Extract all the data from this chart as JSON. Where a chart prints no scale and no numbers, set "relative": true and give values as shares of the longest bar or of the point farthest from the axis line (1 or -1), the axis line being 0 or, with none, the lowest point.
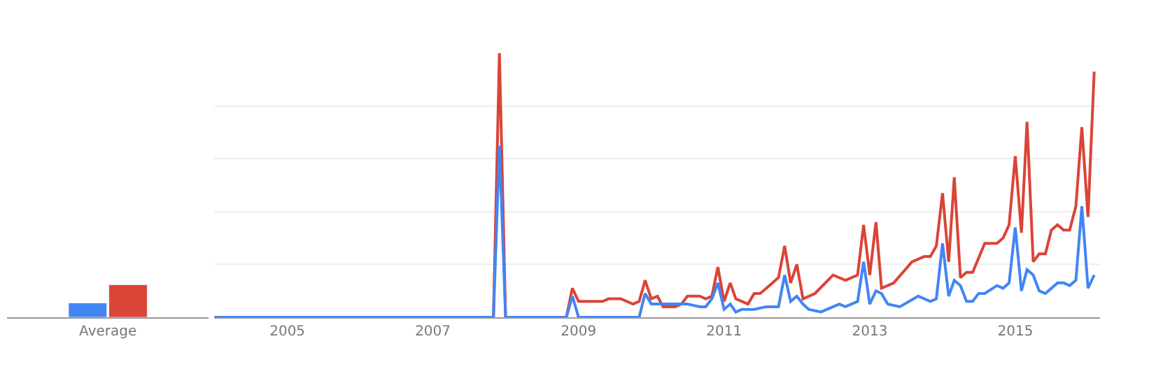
{
  "chart_data": [
    {
      "type": "bar",
      "relative": true,
      "categories": [
        "Average"
      ],
      "legend": false,
      "grid": false,
      "series": [
        {
          "color": "#4285f4",
          "values": [
            0.44
          ]
        },
        {
          "color": "#db4437",
          "values": [
            1
          ]
        }
      ]
    },
    {
      "type": "line",
      "relative": true,
      "legend": false,
      "grid": "y",
      "marker": "none",
      "line_style": "solid",
      "xlim": [
        "2004-01",
        "2016-03"
      ],
      "xticks": [
        "2005",
        "2007",
        "2009",
        "2011",
        "2013",
        "2015"
      ],
      "series": [
        {
          "color": "#db4437",
          "x": [
            "2004-01",
            "2007-11",
            "2007-12",
            "2008-01",
            "2008-11",
            "2008-12",
            "2009-01",
            "2009-05",
            "2009-06",
            "2009-08",
            "2009-10",
            "2009-11",
            "2009-12",
            "2010-01",
            "2010-02",
            "2010-03",
            "2010-05",
            "2010-06",
            "2010-07",
            "2010-09",
            "2010-10",
            "2010-11",
            "2010-12",
            "2011-01",
            "2011-02",
            "2011-03",
            "2011-05",
            "2011-06",
            "2011-07",
            "2011-08",
            "2011-10",
            "2011-11",
            "2011-12",
            "2012-01",
            "2012-02",
            "2012-04",
            "2012-07",
            "2012-09",
            "2012-11",
            "2012-12",
            "2013-01",
            "2013-02",
            "2013-03",
            "2013-05",
            "2013-08",
            "2013-10",
            "2013-11",
            "2013-12",
            "2014-01",
            "2014-02",
            "2014-03",
            "2014-04",
            "2014-05",
            "2014-06",
            "2014-08",
            "2014-10",
            "2014-11",
            "2014-12",
            "2015-01",
            "2015-02",
            "2015-03",
            "2015-04",
            "2015-05",
            "2015-06",
            "2015-07",
            "2015-08",
            "2015-09",
            "2015-10",
            "2015-11",
            "2015-12",
            "2016-01",
            "2016-02"
          ],
          "values": [
            0,
            0,
            1.0,
            0,
            0,
            0.11,
            0.06,
            0.06,
            0.07,
            0.07,
            0.05,
            0.06,
            0.14,
            0.07,
            0.08,
            0.04,
            0.04,
            0.05,
            0.08,
            0.08,
            0.07,
            0.08,
            0.19,
            0.06,
            0.13,
            0.07,
            0.05,
            0.09,
            0.09,
            0.11,
            0.15,
            0.27,
            0.13,
            0.2,
            0.07,
            0.09,
            0.16,
            0.14,
            0.16,
            0.35,
            0.16,
            0.36,
            0.11,
            0.13,
            0.21,
            0.23,
            0.23,
            0.27,
            0.47,
            0.21,
            0.53,
            0.15,
            0.17,
            0.17,
            0.28,
            0.28,
            0.3,
            0.35,
            0.61,
            0.32,
            0.74,
            0.21,
            0.24,
            0.24,
            0.33,
            0.35,
            0.33,
            0.33,
            0.42,
            0.72,
            0.38,
            0.93
          ]
        },
        {
          "color": "#4285f4",
          "x": [
            "2004-01",
            "2007-11",
            "2007-12",
            "2008-01",
            "2008-11",
            "2008-12",
            "2009-01",
            "2009-11",
            "2009-12",
            "2010-01",
            "2010-06",
            "2010-07",
            "2010-09",
            "2010-10",
            "2010-11",
            "2010-12",
            "2011-01",
            "2011-02",
            "2011-03",
            "2011-04",
            "2011-06",
            "2011-08",
            "2011-10",
            "2011-11",
            "2011-12",
            "2012-01",
            "2012-02",
            "2012-03",
            "2012-05",
            "2012-08",
            "2012-09",
            "2012-11",
            "2012-12",
            "2013-01",
            "2013-02",
            "2013-03",
            "2013-04",
            "2013-06",
            "2013-09",
            "2013-11",
            "2013-12",
            "2014-01",
            "2014-02",
            "2014-03",
            "2014-04",
            "2014-05",
            "2014-06",
            "2014-07",
            "2014-08",
            "2014-10",
            "2014-11",
            "2014-12",
            "2015-01",
            "2015-02",
            "2015-03",
            "2015-04",
            "2015-05",
            "2015-06",
            "2015-07",
            "2015-08",
            "2015-09",
            "2015-10",
            "2015-11",
            "2015-12",
            "2016-01",
            "2016-02"
          ],
          "values": [
            0,
            0,
            0.65,
            0,
            0,
            0.08,
            0,
            0,
            0.09,
            0.05,
            0.05,
            0.05,
            0.04,
            0.04,
            0.07,
            0.13,
            0.03,
            0.05,
            0.02,
            0.03,
            0.03,
            0.04,
            0.04,
            0.16,
            0.06,
            0.08,
            0.05,
            0.03,
            0.02,
            0.05,
            0.04,
            0.06,
            0.21,
            0.05,
            0.1,
            0.09,
            0.05,
            0.04,
            0.08,
            0.06,
            0.07,
            0.28,
            0.08,
            0.14,
            0.12,
            0.06,
            0.06,
            0.09,
            0.09,
            0.12,
            0.11,
            0.13,
            0.34,
            0.1,
            0.18,
            0.16,
            0.1,
            0.09,
            0.11,
            0.13,
            0.13,
            0.12,
            0.14,
            0.42,
            0.11,
            0.16
          ]
        }
      ]
    }
  ]
}
